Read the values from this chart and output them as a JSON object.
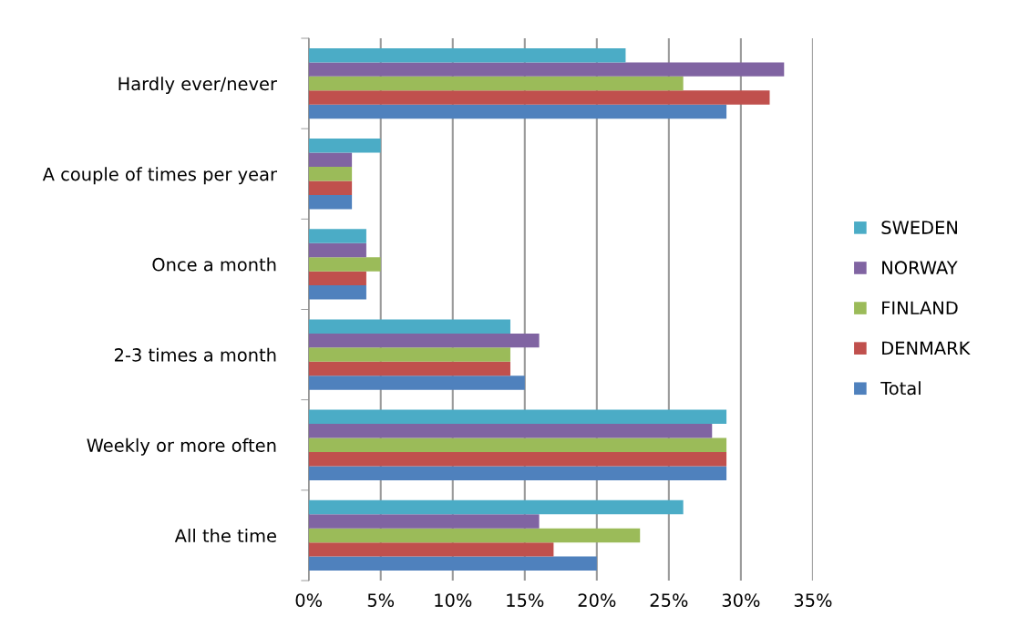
{
  "chart_data": {
    "type": "bar",
    "orientation": "horizontal",
    "categories": [
      "Hardly ever/never",
      "A couple of times per year",
      "Once a month",
      "2-3 times a month",
      "Weekly or more often",
      "All the time"
    ],
    "series": [
      {
        "name": "Total",
        "color": "#4f81bd",
        "values": [
          29,
          3,
          4,
          15,
          29,
          20
        ]
      },
      {
        "name": "DENMARK",
        "color": "#c0504d",
        "values": [
          32,
          3,
          4,
          14,
          29,
          17
        ]
      },
      {
        "name": "FINLAND",
        "color": "#9bbb59",
        "values": [
          26,
          3,
          5,
          14,
          29,
          23
        ]
      },
      {
        "name": "NORWAY",
        "color": "#8064a2",
        "values": [
          33,
          3,
          4,
          16,
          28,
          16
        ]
      },
      {
        "name": "SWEDEN",
        "color": "#4bacc6",
        "values": [
          22,
          5,
          4,
          14,
          29,
          26
        ]
      }
    ],
    "xlim": [
      0,
      35
    ],
    "xticks": [
      {
        "value": 0,
        "label": "0%"
      },
      {
        "value": 5,
        "label": "5%"
      },
      {
        "value": 10,
        "label": "10%"
      },
      {
        "value": 15,
        "label": "15%"
      },
      {
        "value": 20,
        "label": "20%"
      },
      {
        "value": 25,
        "label": "25%"
      },
      {
        "value": 30,
        "label": "30%"
      },
      {
        "value": 35,
        "label": "35%"
      }
    ],
    "grid": "x",
    "legend": "right"
  }
}
